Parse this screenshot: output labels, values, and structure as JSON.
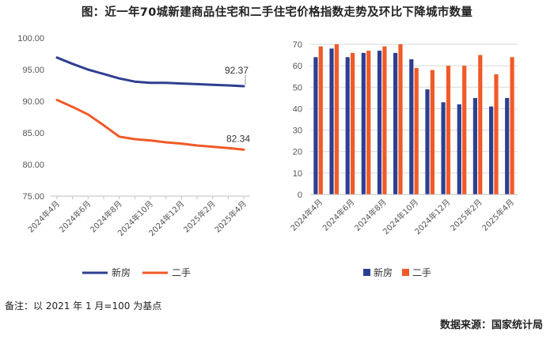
{
  "title": "图：近一年70城新建商品住宅和二手住宅价格指数走势及环比下降城市数量",
  "note": "备注：以 2021 年 1 月=100 为基点",
  "source": "数据来源：国家统计局",
  "colors": {
    "new": "#2E3F91",
    "second": "#F05A28",
    "axis": "#BFBFBF",
    "grid": "#D9D9D9"
  },
  "chart_data": [
    {
      "type": "line",
      "categories": [
        "2024年4月",
        "2024年5月",
        "2024年6月",
        "2024年7月",
        "2024年8月",
        "2024年9月",
        "2024年10月",
        "2024年11月",
        "2024年12月",
        "2025年1月",
        "2025年2月",
        "2025年3月",
        "2025年4月"
      ],
      "tick_labels": [
        "2024年4月",
        "2024年6月",
        "2024年8月",
        "2024年10月",
        "2024年12月",
        "2025年2月",
        "2025年4月"
      ],
      "series": [
        {
          "name": "新房",
          "values": [
            96.9,
            95.9,
            95.0,
            94.3,
            93.6,
            93.1,
            92.9,
            92.9,
            92.8,
            92.7,
            92.6,
            92.5,
            92.37
          ]
        },
        {
          "name": "二手",
          "values": [
            90.2,
            89.1,
            87.9,
            86.2,
            84.4,
            84.0,
            83.8,
            83.5,
            83.3,
            83.0,
            82.8,
            82.6,
            82.34
          ]
        }
      ],
      "data_labels": [
        "92.37",
        "82.34"
      ],
      "ylim": [
        75,
        100
      ],
      "yticks": [
        "75.00",
        "80.00",
        "85.00",
        "90.00",
        "95.00",
        "100.00"
      ],
      "legend": [
        "新房",
        "二手"
      ],
      "legend_position": "bottom"
    },
    {
      "type": "bar",
      "categories": [
        "2024年4月",
        "2024年5月",
        "2024年6月",
        "2024年7月",
        "2024年8月",
        "2024年9月",
        "2024年10月",
        "2024年11月",
        "2024年12月",
        "2025年1月",
        "2025年2月",
        "2025年3月",
        "2025年4月"
      ],
      "tick_labels": [
        "2024年4月",
        "2024年6月",
        "2024年8月",
        "2024年10月",
        "2024年12月",
        "2025年2月",
        "2025年4月"
      ],
      "series": [
        {
          "name": "新房",
          "values": [
            64,
            68,
            64,
            66,
            67,
            66,
            63,
            49,
            43,
            42,
            45,
            41,
            45
          ]
        },
        {
          "name": "二手",
          "values": [
            69,
            70,
            66,
            67,
            69,
            70,
            59,
            58,
            60,
            60,
            65,
            56,
            64
          ]
        }
      ],
      "ylim": [
        0,
        70
      ],
      "yticks": [
        "0",
        "10",
        "20",
        "30",
        "40",
        "50",
        "60",
        "70"
      ],
      "legend": [
        "新房",
        "二手"
      ],
      "legend_position": "bottom"
    }
  ]
}
